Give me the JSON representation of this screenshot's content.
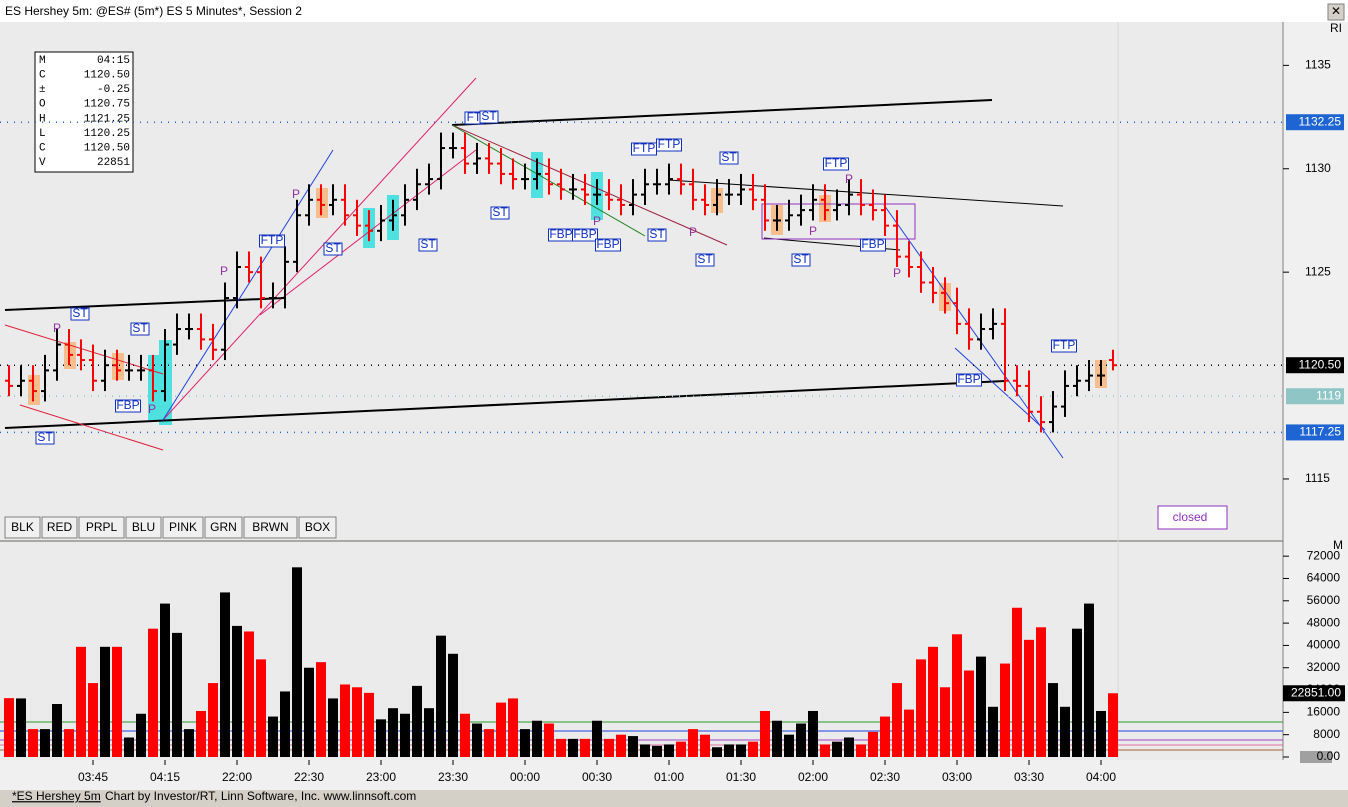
{
  "window_title": "ES Hershey 5m: @ES# (5m*) ES 5 Minutes*, Session 2",
  "corner_label": "RI",
  "pane_label": "M",
  "info_box": [
    [
      "M",
      "04:15"
    ],
    [
      "C",
      "1120.50"
    ],
    [
      "±",
      "-0.25"
    ],
    [
      "O",
      "1120.75"
    ],
    [
      "H",
      "1121.25"
    ],
    [
      "L",
      "1120.25"
    ],
    [
      "C",
      "1120.50"
    ],
    [
      "V",
      "22851"
    ]
  ],
  "buttons": [
    "BLK",
    "RED",
    "PRPL",
    "BLU",
    "PINK",
    "GRN",
    "BRWN",
    "BOX"
  ],
  "status_text": "closed",
  "annotations": [
    "ST",
    "P",
    "ST",
    "FBP",
    "P",
    "ST",
    "FTP",
    "P",
    "P",
    "ST",
    "ST",
    "FT",
    "ST",
    "ST",
    "FBP",
    "FBP",
    "FBP",
    "P",
    "ST",
    "FTP",
    "FTP",
    "P",
    "ST",
    "ST",
    "FTP",
    "P",
    "P",
    "ST",
    "FBP",
    "P",
    "FBP",
    "FTP"
  ],
  "footer": {
    "tab": "*ES Hershey 5m",
    "credit": "Chart by Investor/RT, Linn Software, Inc. www.linnsoft.com"
  },
  "chart_data": [
    {
      "type": "ohlc",
      "ylim": [
        1112,
        1137
      ],
      "yticks": [
        1115,
        1125,
        1130,
        1135
      ],
      "up_color": "#000000",
      "down_color": "#ff0000",
      "price_tags": [
        1132.25,
        {
          "value": 1120.5,
          "label": "1120.50"
        },
        1119,
        1117.25
      ],
      "price_tag_colors": [
        "#1e64d2",
        "#000000",
        "#8fc5c5",
        "#1e64d2"
      ],
      "open": [
        1119.75,
        1119.5,
        1119.75,
        1119.25,
        1120.25,
        1121.5,
        1121,
        1120.75,
        1119.75,
        1120.5,
        1120.25,
        1120.25,
        1120.25,
        1119.25,
        1121.5,
        1122.25,
        1122.25,
        1121.75,
        1121.25,
        1123.75,
        1125.25,
        1125,
        1123.75,
        1123.75,
        1125.5,
        1127.75,
        1128.5,
        1128.25,
        1128.5,
        1127.75,
        1127.25,
        1127,
        1127.5,
        1127.75,
        1128.5,
        1129.25,
        1129.5,
        1131,
        1131,
        1130.25,
        1130.5,
        1130.25,
        1129.75,
        1129.5,
        1129.5,
        1129.75,
        1129.25,
        1129,
        1129,
        1128.75,
        1128.75,
        1128.5,
        1128.25,
        1128.75,
        1129.25,
        1129.25,
        1129.5,
        1129.25,
        1128.5,
        1128.25,
        1128.75,
        1128.75,
        1129,
        1128.5,
        1127.5,
        1127.5,
        1127.75,
        1128,
        1128.5,
        1128,
        1128.25,
        1128.75,
        1128.25,
        1128,
        1127.25,
        1125.75,
        1125.25,
        1124.5,
        1124,
        1123.5,
        1122.5,
        1121.75,
        1122.25,
        1122.5,
        1119.75,
        1119.5,
        1118.25,
        1117.75,
        1118.5,
        1119.5,
        1119.75,
        1120,
        1120.75
      ],
      "high": [
        1120.5,
        1120.5,
        1120.5,
        1121,
        1122.25,
        1122.25,
        1121.75,
        1121.5,
        1121.25,
        1121.25,
        1121,
        1121,
        1121,
        1122.25,
        1123,
        1123,
        1123,
        1122.5,
        1124.5,
        1126,
        1126,
        1125.75,
        1124.5,
        1126.25,
        1128.5,
        1129.25,
        1129.25,
        1129.25,
        1129.25,
        1128.5,
        1128,
        1128.25,
        1128.5,
        1129.25,
        1130,
        1130.25,
        1131.75,
        1131.75,
        1131.75,
        1131.25,
        1131.25,
        1131,
        1130.5,
        1130.25,
        1130.5,
        1130.5,
        1130,
        1129.75,
        1129.75,
        1129.5,
        1129.5,
        1129.25,
        1129.5,
        1130,
        1130,
        1130.25,
        1130.25,
        1130,
        1129.25,
        1129.5,
        1129.5,
        1129.75,
        1129.75,
        1129.25,
        1128.25,
        1128.5,
        1128.75,
        1129.25,
        1129.25,
        1129,
        1129.5,
        1129.5,
        1129,
        1128.75,
        1128,
        1126.5,
        1126,
        1125.25,
        1124.75,
        1124.25,
        1123.25,
        1123,
        1123.25,
        1123.25,
        1120.5,
        1120.25,
        1119,
        1119.25,
        1120.25,
        1120.5,
        1120.75,
        1120.75,
        1121.25
      ],
      "low": [
        1119,
        1119,
        1118.75,
        1118.75,
        1119.75,
        1120.5,
        1120.25,
        1119.25,
        1119.25,
        1119.75,
        1119.75,
        1119.75,
        1118.75,
        1118.75,
        1121,
        1121.75,
        1121.25,
        1120.75,
        1120.75,
        1123.25,
        1124.5,
        1123.25,
        1123.25,
        1123.25,
        1125,
        1127.25,
        1127.75,
        1127.75,
        1127.25,
        1126.75,
        1126.5,
        1126.5,
        1127,
        1127.25,
        1128,
        1128.75,
        1129,
        1130.5,
        1129.75,
        1129.75,
        1129.75,
        1129.25,
        1129,
        1129,
        1129,
        1128.75,
        1128.5,
        1128.5,
        1128.25,
        1128.25,
        1128,
        1127.75,
        1127.75,
        1128.25,
        1128.75,
        1128.75,
        1128.75,
        1128,
        1127.75,
        1127.75,
        1128.25,
        1128.25,
        1128,
        1127,
        1127,
        1127,
        1127.25,
        1127.5,
        1127.5,
        1127.5,
        1127.75,
        1127.75,
        1127.5,
        1126.75,
        1125.25,
        1124.75,
        1124,
        1123.5,
        1123,
        1122,
        1121.25,
        1121.25,
        1121.75,
        1119.25,
        1119,
        1117.75,
        1117.25,
        1117.25,
        1118,
        1119,
        1119.25,
        1119.5,
        1120.25
      ],
      "close": [
        1119.5,
        1119.75,
        1119.25,
        1120.25,
        1121.5,
        1121,
        1120.75,
        1119.75,
        1120.5,
        1120.25,
        1120.25,
        1120.25,
        1119.25,
        1121.5,
        1122.25,
        1122.25,
        1121.75,
        1121.25,
        1123.75,
        1125.25,
        1125,
        1123.75,
        1123.75,
        1125.5,
        1127.75,
        1128.5,
        1128.25,
        1128.5,
        1127.75,
        1127.25,
        1127,
        1127.5,
        1127.75,
        1128.5,
        1129.25,
        1129.5,
        1131,
        1131,
        1130.25,
        1130.5,
        1130.25,
        1129.75,
        1129.5,
        1129.5,
        1129.75,
        1129.25,
        1129,
        1129,
        1128.75,
        1128.75,
        1128.5,
        1128.25,
        1128.75,
        1129.25,
        1129.25,
        1129.5,
        1129.25,
        1128.5,
        1128.25,
        1128.75,
        1128.75,
        1129,
        1128.5,
        1127.5,
        1127.5,
        1127.75,
        1128,
        1128.5,
        1128,
        1128.25,
        1128.75,
        1128.25,
        1128,
        1127.25,
        1125.75,
        1125.25,
        1124.5,
        1124,
        1123.5,
        1122.5,
        1121.75,
        1122.25,
        1122.5,
        1119.75,
        1119.5,
        1118.25,
        1117.75,
        1118.5,
        1119.5,
        1119.75,
        1120,
        1120,
        1120.5
      ]
    },
    {
      "type": "bar",
      "ylim": [
        0,
        76000
      ],
      "yticks": [
        {
          "value": 0,
          "label": "0.00"
        },
        8000,
        16000,
        24000,
        32000,
        40000,
        48000,
        56000,
        64000,
        72000
      ],
      "volume_tag": {
        "value": 22851,
        "label": "22851.00"
      },
      "categories": [
        null,
        null,
        null,
        null,
        null,
        null,
        null,
        "03:45",
        null,
        null,
        null,
        null,
        null,
        "04:15",
        null,
        null,
        null,
        null,
        null,
        "22:00",
        null,
        null,
        null,
        null,
        null,
        "22:30",
        null,
        null,
        null,
        null,
        null,
        "23:00",
        null,
        null,
        null,
        null,
        null,
        "23:30",
        null,
        null,
        null,
        null,
        null,
        "00:00",
        null,
        null,
        null,
        null,
        null,
        "00:30",
        null,
        null,
        null,
        null,
        null,
        "01:00",
        null,
        null,
        null,
        null,
        null,
        "01:30",
        null,
        null,
        null,
        null,
        null,
        "02:00",
        null,
        null,
        null,
        null,
        null,
        "02:30",
        null,
        null,
        null,
        null,
        null,
        "03:00",
        null,
        null,
        null,
        null,
        null,
        "03:30",
        null,
        null,
        null,
        null,
        null,
        "04:00",
        null
      ],
      "values": [
        21100,
        21000,
        10000,
        10000,
        19000,
        10000,
        39500,
        26500,
        39500,
        39500,
        7000,
        15500,
        46000,
        55000,
        44500,
        10000,
        16500,
        26500,
        59000,
        47000,
        45000,
        35000,
        14500,
        23500,
        68000,
        32000,
        34000,
        21000,
        26000,
        25000,
        23000,
        13500,
        17500,
        15500,
        25500,
        17500,
        43500,
        37000,
        15500,
        12000,
        10000,
        19500,
        21000,
        10000,
        13000,
        12000,
        6500,
        6500,
        6500,
        13000,
        6500,
        8000,
        7500,
        4500,
        4000,
        4500,
        5500,
        10000,
        8000,
        3500,
        4500,
        4500,
        5500,
        16500,
        13000,
        8000,
        12000,
        16500,
        4500,
        5500,
        7000,
        4500,
        9000,
        14500,
        26500,
        17000,
        35000,
        39500,
        25000,
        44000,
        31000,
        36000,
        18000,
        33500,
        53500,
        42000,
        46500,
        26500,
        18000,
        46000,
        55000,
        16500,
        22851
      ]
    }
  ]
}
